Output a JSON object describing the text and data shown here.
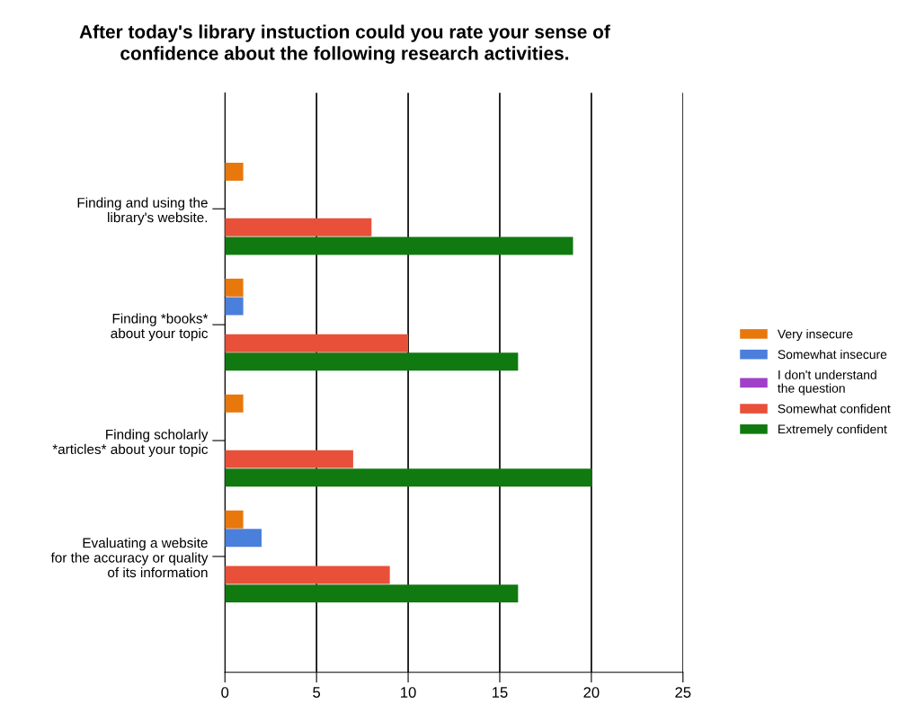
{
  "chart_data": {
    "type": "bar",
    "orientation": "horizontal",
    "title": "After today's library instuction could you rate your sense of\nconfidence about the following research activities.",
    "categories": [
      "Finding and using the\nlibrary's website.",
      "Finding *books*\nabout your topic",
      "Finding scholarly\n*articles* about your topic",
      "Evaluating a website\nfor the accuracy or quality\nof its information"
    ],
    "series": [
      {
        "name": "Very insecure",
        "color": "#e8780c",
        "values": [
          1,
          1,
          1,
          1
        ]
      },
      {
        "name": "Somewhat insecure",
        "color": "#4a7fdc",
        "values": [
          0,
          1,
          0,
          2
        ]
      },
      {
        "name": "I don't understand\nthe question",
        "color": "#a040c8",
        "values": [
          0,
          0,
          0,
          0
        ]
      },
      {
        "name": "Somewhat confident",
        "color": "#e8503a",
        "values": [
          8,
          10,
          7,
          9
        ]
      },
      {
        "name": "Extremely confident",
        "color": "#107a10",
        "values": [
          19,
          16,
          20,
          16
        ]
      }
    ],
    "xlim": [
      0,
      25
    ],
    "xticks": [
      0,
      5,
      10,
      15,
      20,
      25
    ],
    "grid": "x",
    "legend": "right"
  }
}
